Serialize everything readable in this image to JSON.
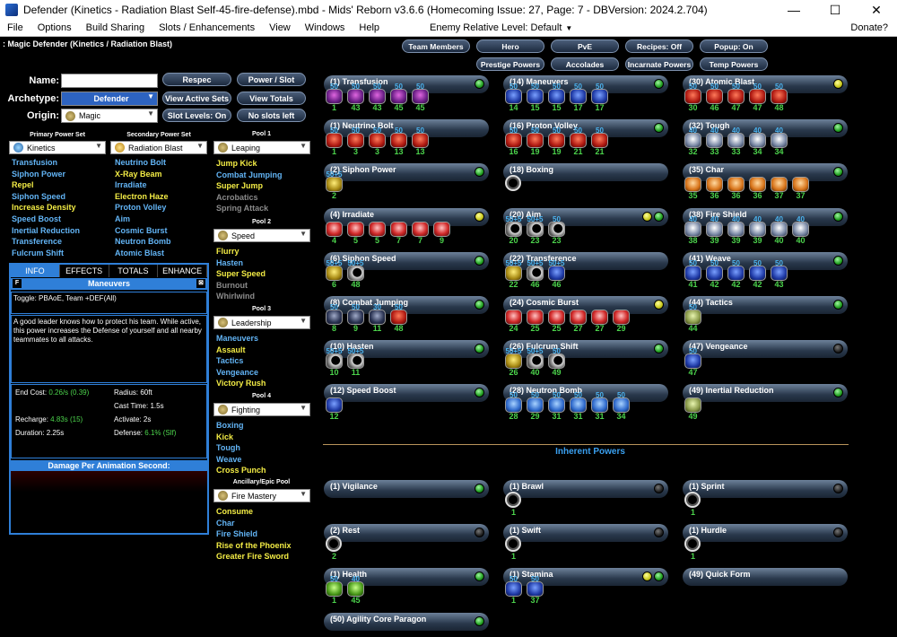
{
  "window": {
    "title": "Defender (Kinetics - Radiation Blast Self-45-fire-defense).mbd - Mids' Reborn v3.6.6  (Homecoming Issue: 27, Page: 7 - DBVersion: 2024.2.704)",
    "minimize": "—",
    "maximize": "☐",
    "close": "✕"
  },
  "menu": {
    "items": [
      "File",
      "Options",
      "Build Sharing",
      "Slots / Enhancements",
      "View",
      "Windows",
      "Help"
    ],
    "enemy_level_label": "Enemy Relative Level:",
    "enemy_level_value": "Default",
    "donate": "Donate?"
  },
  "class_title": ": Magic Defender (Kinetics / Radiation Blast)",
  "left": {
    "name_label": "Name:",
    "name_value": "",
    "archetype_label": "Archetype:",
    "archetype_value": "Defender",
    "origin_label": "Origin:",
    "origin_value": "Magic",
    "buttons": {
      "respec": "Respec",
      "power_slot": "Power / Slot",
      "view_active_sets": "View Active Sets",
      "view_totals": "View Totals",
      "slot_levels": "Slot Levels: On",
      "no_slots_left": "No slots left"
    },
    "primary_header": "Primary Power Set",
    "primary_value": "Kinetics",
    "secondary_header": "Secondary Power Set",
    "secondary_value": "Radiation Blast",
    "primary_powers": [
      {
        "name": "Transfusion",
        "color": "blue"
      },
      {
        "name": "Siphon Power",
        "color": "blue"
      },
      {
        "name": "Repel",
        "color": "yellow"
      },
      {
        "name": "Siphon Speed",
        "color": "blue"
      },
      {
        "name": "Increase Density",
        "color": "yellow"
      },
      {
        "name": "Speed Boost",
        "color": "blue"
      },
      {
        "name": "Inertial Reduction",
        "color": "blue"
      },
      {
        "name": "Transference",
        "color": "blue"
      },
      {
        "name": "Fulcrum Shift",
        "color": "blue"
      }
    ],
    "secondary_powers": [
      {
        "name": "Neutrino Bolt",
        "color": "blue"
      },
      {
        "name": "X-Ray Beam",
        "color": "yellow"
      },
      {
        "name": "Irradiate",
        "color": "blue"
      },
      {
        "name": "Electron Haze",
        "color": "yellow"
      },
      {
        "name": "Proton Volley",
        "color": "blue"
      },
      {
        "name": "Aim",
        "color": "blue"
      },
      {
        "name": "Cosmic Burst",
        "color": "blue"
      },
      {
        "name": "Neutron Bomb",
        "color": "blue"
      },
      {
        "name": "Atomic Blast",
        "color": "blue"
      }
    ]
  },
  "info": {
    "tabs": [
      "INFO",
      "EFFECTS",
      "TOTALS",
      "ENHANCE"
    ],
    "f_label": "F",
    "e_label": "⊠",
    "power_title": "Maneuvers",
    "short_desc": "Toggle: PBAoE, Team +DEF(All)",
    "long_desc": "A good leader knows how to protect his team. While active, this power increases the Defense of yourself and all nearby teammates to all attacks.",
    "stats": {
      "end_cost_label": "End Cost:",
      "end_cost": "0.26/s (0.39)",
      "radius_label": "Radius:",
      "radius": "60ft",
      "cast_time_label": "Cast Time:",
      "cast_time": "1.5s",
      "recharge_label": "Recharge:",
      "recharge": "4.83s (15)",
      "activate_label": "Activate:",
      "activate": "2s",
      "duration_label": "Duration:",
      "duration": "2.25s",
      "defense_label": "Defense:",
      "defense": "6.1% (Slf)"
    },
    "dpas_title": "Damage Per Animation Second:"
  },
  "pools": [
    {
      "header": "Pool 1",
      "value": "Leaping",
      "powers": [
        {
          "name": "Jump Kick",
          "color": "yellow"
        },
        {
          "name": "Combat Jumping",
          "color": "blue"
        },
        {
          "name": "Super Jump",
          "color": "yellow"
        },
        {
          "name": "Acrobatics",
          "color": "gray"
        },
        {
          "name": "Spring Attack",
          "color": "gray"
        }
      ]
    },
    {
      "header": "Pool 2",
      "value": "Speed",
      "powers": [
        {
          "name": "Flurry",
          "color": "yellow"
        },
        {
          "name": "Hasten",
          "color": "blue"
        },
        {
          "name": "Super Speed",
          "color": "yellow"
        },
        {
          "name": "Burnout",
          "color": "gray"
        },
        {
          "name": "Whirlwind",
          "color": "gray"
        }
      ]
    },
    {
      "header": "Pool 3",
      "value": "Leadership",
      "powers": [
        {
          "name": "Maneuvers",
          "color": "blue"
        },
        {
          "name": "Assault",
          "color": "yellow"
        },
        {
          "name": "Tactics",
          "color": "blue"
        },
        {
          "name": "Vengeance",
          "color": "blue"
        },
        {
          "name": "Victory Rush",
          "color": "yellow"
        }
      ]
    },
    {
      "header": "Pool 4",
      "value": "Fighting",
      "powers": [
        {
          "name": "Boxing",
          "color": "blue"
        },
        {
          "name": "Kick",
          "color": "yellow"
        },
        {
          "name": "Tough",
          "color": "blue"
        },
        {
          "name": "Weave",
          "color": "blue"
        },
        {
          "name": "Cross Punch",
          "color": "yellow"
        }
      ]
    },
    {
      "header": "Ancillary/Epic Pool",
      "value": "Fire Mastery",
      "powers": [
        {
          "name": "Consume",
          "color": "yellow"
        },
        {
          "name": "Char",
          "color": "blue"
        },
        {
          "name": "Fire Shield",
          "color": "blue"
        },
        {
          "name": "Rise of the Phoenix",
          "color": "yellow"
        },
        {
          "name": "Greater Fire Sword",
          "color": "yellow"
        }
      ]
    }
  ],
  "top_buttons": {
    "row1": [
      "Team Members",
      "Hero",
      "PvE",
      "Recipes: Off",
      "Popup: On"
    ],
    "row2": [
      "Prestige Powers",
      "Accolades",
      "Incarnate Powers",
      "Temp Powers"
    ]
  },
  "build_columns": [
    [
      {
        "label": "(1) Transfusion",
        "dot": "green",
        "slots": [
          {
            "lv": "50",
            "bl": "1",
            "c": "purple"
          },
          {
            "lv": "50",
            "bl": "43",
            "c": "purple"
          },
          {
            "lv": "50",
            "bl": "43",
            "c": "purple"
          },
          {
            "lv": "50",
            "bl": "45",
            "c": "purple"
          },
          {
            "lv": "50",
            "bl": "45",
            "c": "purple"
          }
        ]
      },
      {
        "label": "(1) Neutrino Bolt",
        "dot": "",
        "slots": [
          {
            "lv": "50",
            "bl": "1",
            "c": "red"
          },
          {
            "lv": "50",
            "bl": "3",
            "c": "red"
          },
          {
            "lv": "50",
            "bl": "3",
            "c": "red"
          },
          {
            "lv": "50",
            "bl": "13",
            "c": "red"
          },
          {
            "lv": "50",
            "bl": "13",
            "c": "red"
          }
        ]
      },
      {
        "label": "(2) Siphon Power",
        "dot": "green",
        "slots": [
          {
            "lv": "50+5",
            "bl": "2",
            "c": "yellow"
          }
        ]
      },
      {
        "label": "(4) Irradiate",
        "dot": "yellow",
        "slots": [
          {
            "lv": "",
            "bl": "4",
            "c": "crimson"
          },
          {
            "lv": "",
            "bl": "5",
            "c": "crimson"
          },
          {
            "lv": "",
            "bl": "5",
            "c": "crimson"
          },
          {
            "lv": "",
            "bl": "7",
            "c": "crimson"
          },
          {
            "lv": "",
            "bl": "7",
            "c": "crimson"
          },
          {
            "lv": "",
            "bl": "9",
            "c": "crimson"
          }
        ]
      },
      {
        "label": "(6) Siphon Speed",
        "dot": "green",
        "slots": [
          {
            "lv": "50+5",
            "bl": "6",
            "c": "yellow"
          },
          {
            "lv": "50+5",
            "bl": "48",
            "c": "moon"
          }
        ]
      },
      {
        "label": "(8) Combat Jumping",
        "dot": "green",
        "slots": [
          {
            "lv": "50",
            "bl": "8",
            "c": "dark"
          },
          {
            "lv": "50",
            "bl": "9",
            "c": "dark"
          },
          {
            "lv": "30",
            "bl": "11",
            "c": "dark"
          },
          {
            "lv": "50",
            "bl": "48",
            "c": "red"
          }
        ]
      },
      {
        "label": "(10) Hasten",
        "dot": "green",
        "slots": [
          {
            "lv": "50+5",
            "bl": "10",
            "c": "moon"
          },
          {
            "lv": "50+5",
            "bl": "11",
            "c": "moon"
          }
        ]
      },
      {
        "label": "(12) Speed Boost",
        "dot": "green",
        "slots": [
          {
            "lv": "",
            "bl": "12",
            "c": "navy"
          }
        ]
      }
    ],
    [
      {
        "label": "(14) Maneuvers",
        "dot": "green",
        "slots": [
          {
            "lv": "50",
            "bl": "14",
            "c": "navy"
          },
          {
            "lv": "50",
            "bl": "15",
            "c": "navy"
          },
          {
            "lv": "50",
            "bl": "15",
            "c": "navy"
          },
          {
            "lv": "50",
            "bl": "17",
            "c": "navy"
          },
          {
            "lv": "50",
            "bl": "17",
            "c": "navy"
          }
        ]
      },
      {
        "label": "(16) Proton Volley",
        "dot": "green",
        "slots": [
          {
            "lv": "50",
            "bl": "16",
            "c": "red"
          },
          {
            "lv": "50",
            "bl": "19",
            "c": "red"
          },
          {
            "lv": "50",
            "bl": "19",
            "c": "red"
          },
          {
            "lv": "50",
            "bl": "21",
            "c": "red"
          },
          {
            "lv": "50",
            "bl": "21",
            "c": "red"
          }
        ]
      },
      {
        "label": "(18) Boxing",
        "dot": "",
        "slots": [
          {
            "lv": "",
            "bl": "",
            "c": "ring"
          }
        ]
      },
      {
        "label": "(20) Aim",
        "dot": "yellowgreen",
        "slots": [
          {
            "lv": "50+5",
            "bl": "20",
            "c": "moon"
          },
          {
            "lv": "50+5",
            "bl": "23",
            "c": "moon"
          },
          {
            "lv": "50",
            "bl": "23",
            "c": "moon"
          }
        ]
      },
      {
        "label": "(22) Transference",
        "dot": "",
        "slots": [
          {
            "lv": "50+5",
            "bl": "22",
            "c": "yellow"
          },
          {
            "lv": "50+5",
            "bl": "46",
            "c": "moon"
          },
          {
            "lv": "50+5",
            "bl": "46",
            "c": "navy"
          }
        ]
      },
      {
        "label": "(24) Cosmic Burst",
        "dot": "yellow",
        "slots": [
          {
            "lv": "",
            "bl": "24",
            "c": "crimson"
          },
          {
            "lv": "",
            "bl": "25",
            "c": "crimson"
          },
          {
            "lv": "",
            "bl": "25",
            "c": "crimson"
          },
          {
            "lv": "",
            "bl": "27",
            "c": "crimson"
          },
          {
            "lv": "",
            "bl": "27",
            "c": "crimson"
          },
          {
            "lv": "",
            "bl": "29",
            "c": "crimson"
          }
        ]
      },
      {
        "label": "(26) Fulcrum Shift",
        "dot": "green",
        "slots": [
          {
            "lv": "50+5",
            "bl": "26",
            "c": "yellow"
          },
          {
            "lv": "50+5",
            "bl": "40",
            "c": "moon"
          },
          {
            "lv": "50",
            "bl": "49",
            "c": "moon"
          }
        ]
      },
      {
        "label": "(28) Neutron Bomb",
        "dot": "",
        "slots": [
          {
            "lv": "50",
            "bl": "28",
            "c": "blueshield"
          },
          {
            "lv": "50",
            "bl": "29",
            "c": "blueshield"
          },
          {
            "lv": "50",
            "bl": "31",
            "c": "blueshield"
          },
          {
            "lv": "50",
            "bl": "31",
            "c": "blueshield"
          },
          {
            "lv": "50",
            "bl": "31",
            "c": "blueshield"
          },
          {
            "lv": "50",
            "bl": "34",
            "c": "blueshield"
          }
        ]
      }
    ],
    [
      {
        "label": "(30) Atomic Blast",
        "dot": "yellow",
        "slots": [
          {
            "lv": "50",
            "bl": "30",
            "c": "red"
          },
          {
            "lv": "50",
            "bl": "46",
            "c": "red"
          },
          {
            "lv": "50",
            "bl": "47",
            "c": "red"
          },
          {
            "lv": "50",
            "bl": "47",
            "c": "red"
          },
          {
            "lv": "50",
            "bl": "48",
            "c": "red"
          }
        ]
      },
      {
        "label": "(32) Tough",
        "dot": "green",
        "slots": [
          {
            "lv": "40",
            "bl": "32",
            "c": "steel"
          },
          {
            "lv": "40",
            "bl": "33",
            "c": "steel"
          },
          {
            "lv": "40",
            "bl": "33",
            "c": "steel"
          },
          {
            "lv": "40",
            "bl": "34",
            "c": "steel"
          },
          {
            "lv": "40",
            "bl": "34",
            "c": "steel"
          }
        ]
      },
      {
        "label": "(35) Char",
        "dot": "green",
        "slots": [
          {
            "lv": "",
            "bl": "35",
            "c": "orange"
          },
          {
            "lv": "",
            "bl": "36",
            "c": "orange"
          },
          {
            "lv": "",
            "bl": "36",
            "c": "orange"
          },
          {
            "lv": "",
            "bl": "36",
            "c": "orange"
          },
          {
            "lv": "",
            "bl": "37",
            "c": "orange"
          },
          {
            "lv": "",
            "bl": "37",
            "c": "orange"
          }
        ]
      },
      {
        "label": "(38) Fire Shield",
        "dot": "green",
        "slots": [
          {
            "lv": "40",
            "bl": "38",
            "c": "steel"
          },
          {
            "lv": "40",
            "bl": "39",
            "c": "steel"
          },
          {
            "lv": "40",
            "bl": "39",
            "c": "steel"
          },
          {
            "lv": "40",
            "bl": "39",
            "c": "steel"
          },
          {
            "lv": "40",
            "bl": "40",
            "c": "steel"
          },
          {
            "lv": "40",
            "bl": "40",
            "c": "steel"
          }
        ]
      },
      {
        "label": "(41) Weave",
        "dot": "green",
        "slots": [
          {
            "lv": "50",
            "bl": "41",
            "c": "navy"
          },
          {
            "lv": "50",
            "bl": "42",
            "c": "navy"
          },
          {
            "lv": "50",
            "bl": "42",
            "c": "navy"
          },
          {
            "lv": "50",
            "bl": "42",
            "c": "navy"
          },
          {
            "lv": "50",
            "bl": "43",
            "c": "navy"
          }
        ]
      },
      {
        "label": "(44) Tactics",
        "dot": "green",
        "slots": [
          {
            "lv": "50",
            "bl": "44",
            "c": "olive"
          }
        ]
      },
      {
        "label": "(47) Vengeance",
        "dot": "black",
        "slots": [
          {
            "lv": "50",
            "bl": "47",
            "c": "navy"
          }
        ]
      },
      {
        "label": "(49) Inertial Reduction",
        "dot": "green",
        "slots": [
          {
            "lv": "",
            "bl": "49",
            "c": "olive"
          }
        ]
      }
    ]
  ],
  "inherent_title": "Inherent Powers",
  "inherent_columns": [
    [
      {
        "label": "(1) Vigilance",
        "dot": "green",
        "slots": []
      },
      {
        "label": "(2) Rest",
        "dot": "black",
        "slots": [
          {
            "lv": "",
            "bl": "2",
            "c": "ring"
          }
        ]
      },
      {
        "label": "(1) Health",
        "dot": "green",
        "slots": [
          {
            "lv": "50",
            "bl": "1",
            "c": "green"
          },
          {
            "lv": "40",
            "bl": "45",
            "c": "green"
          }
        ]
      },
      {
        "label": "(50) Agility Core Paragon",
        "dot": "green",
        "slots": []
      }
    ],
    [
      {
        "label": "(1) Brawl",
        "dot": "black",
        "slots": [
          {
            "lv": "",
            "bl": "1",
            "c": "ring"
          }
        ]
      },
      {
        "label": "(1) Swift",
        "dot": "black",
        "slots": [
          {
            "lv": "",
            "bl": "1",
            "c": "ring"
          }
        ]
      },
      {
        "label": "(1) Stamina",
        "dot": "yellowgreen",
        "slots": [
          {
            "lv": "50",
            "bl": "1",
            "c": "navy"
          },
          {
            "lv": "50",
            "bl": "37",
            "c": "navy"
          }
        ]
      }
    ],
    [
      {
        "label": "(1) Sprint",
        "dot": "black",
        "slots": [
          {
            "lv": "",
            "bl": "1",
            "c": "ring"
          }
        ]
      },
      {
        "label": "(1) Hurdle",
        "dot": "black",
        "slots": [
          {
            "lv": "",
            "bl": "1",
            "c": "ring"
          }
        ]
      },
      {
        "label": "(49) Quick Form",
        "dot": "",
        "slots": []
      }
    ]
  ]
}
